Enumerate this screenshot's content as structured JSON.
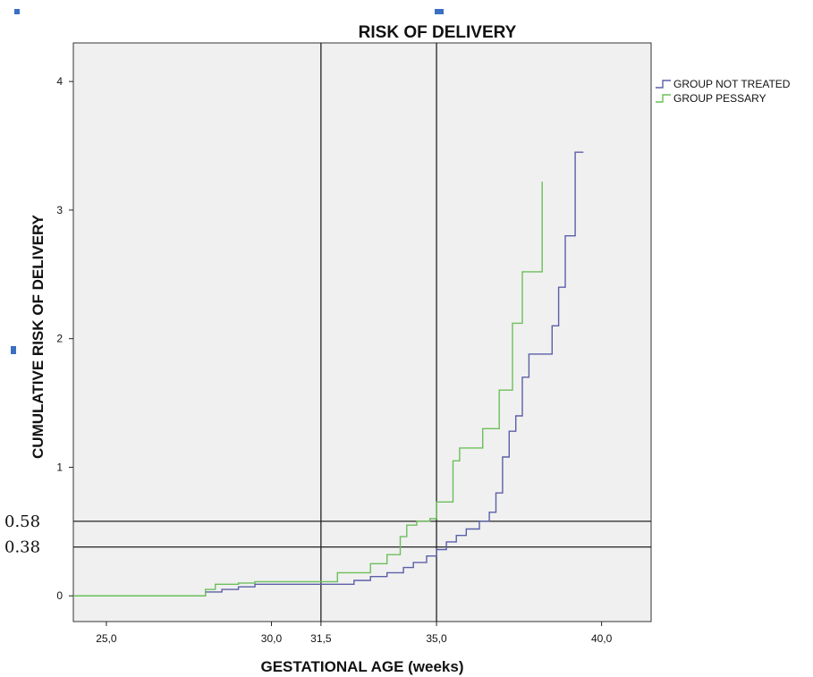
{
  "chart_data": {
    "type": "line",
    "title": "RISK OF DELIVERY",
    "xlabel": "GESTATIONAL AGE (weeks)",
    "ylabel": "CUMULATIVE RISK OF DELIVERY",
    "xlim": [
      24.0,
      41.5
    ],
    "ylim": [
      -0.2,
      4.3
    ],
    "x_ticks": [
      {
        "value": 25.0,
        "label": "25,0"
      },
      {
        "value": 30.0,
        "label": "30,0"
      },
      {
        "value": 31.5,
        "label": "31,5"
      },
      {
        "value": 35.0,
        "label": "35,0"
      },
      {
        "value": 40.0,
        "label": "40,0"
      }
    ],
    "y_ticks": [
      {
        "value": 0,
        "label": "0"
      },
      {
        "value": 1,
        "label": "1"
      },
      {
        "value": 2,
        "label": "2"
      },
      {
        "value": 3,
        "label": "3"
      },
      {
        "value": 4,
        "label": "4"
      }
    ],
    "reference_lines": {
      "vertical": [
        31.5,
        35.0
      ],
      "horizontal": [
        {
          "value": 0.58,
          "label": "0.58"
        },
        {
          "value": 0.38,
          "label": "0.38"
        }
      ]
    },
    "grid": false,
    "legend_position": "right",
    "series": [
      {
        "name": "GROUP NOT TREATED",
        "color": "#5b5fa8",
        "step": true,
        "x": [
          24.0,
          28.0,
          28.5,
          29.0,
          29.5,
          31.5,
          32.5,
          33.0,
          33.5,
          34.0,
          34.3,
          34.7,
          35.0,
          35.3,
          35.6,
          35.9,
          36.3,
          36.6,
          36.8,
          37.0,
          37.2,
          37.4,
          37.6,
          37.8,
          38.0,
          38.5,
          38.7,
          38.9,
          39.2,
          39.45
        ],
        "y": [
          0.0,
          0.03,
          0.05,
          0.07,
          0.09,
          0.09,
          0.12,
          0.15,
          0.18,
          0.22,
          0.26,
          0.31,
          0.36,
          0.42,
          0.47,
          0.52,
          0.58,
          0.65,
          0.8,
          1.08,
          1.28,
          1.4,
          1.7,
          1.88,
          1.88,
          2.1,
          2.4,
          2.8,
          3.45,
          3.45
        ]
      },
      {
        "name": "GROUP PESSARY",
        "color": "#6bbf5a",
        "step": true,
        "x": [
          24.0,
          28.0,
          28.3,
          29.0,
          29.5,
          31.5,
          32.0,
          33.0,
          33.5,
          33.9,
          34.1,
          34.4,
          34.8,
          35.0,
          35.5,
          35.7,
          36.4,
          36.9,
          37.3,
          37.6,
          38.2
        ],
        "y": [
          0.0,
          0.05,
          0.09,
          0.1,
          0.11,
          0.11,
          0.18,
          0.25,
          0.32,
          0.46,
          0.55,
          0.58,
          0.6,
          0.73,
          1.05,
          1.15,
          1.3,
          1.6,
          2.12,
          2.52,
          3.22
        ]
      }
    ]
  }
}
